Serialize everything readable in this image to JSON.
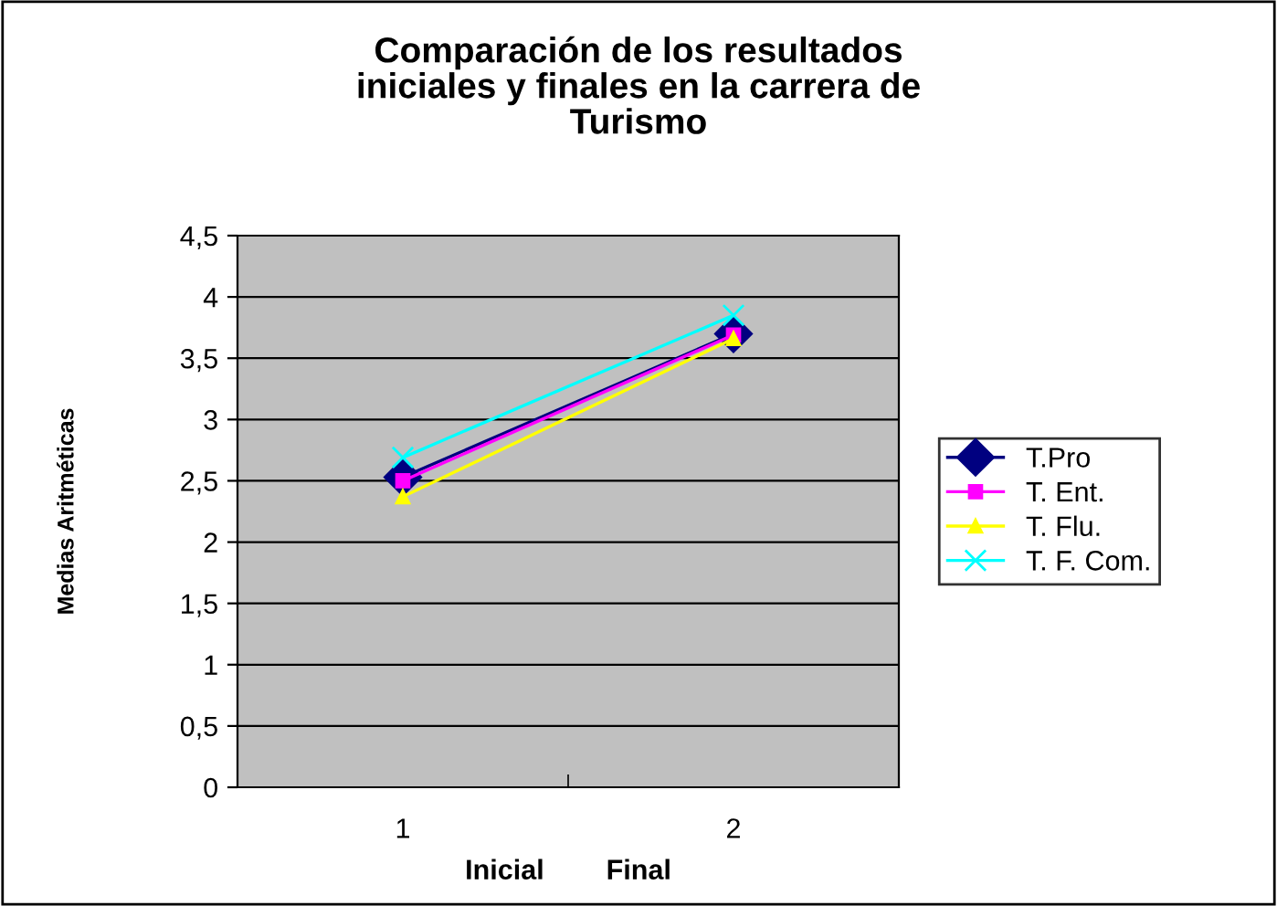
{
  "chart_data": {
    "type": "line",
    "title": "Comparación de los resultados\niniciales y finales en la carrera de\nTurismo",
    "xlabel": "Inicial        Final",
    "ylabel": "Medias Aritméticas",
    "categories": [
      "1",
      "2"
    ],
    "series": [
      {
        "name": "T.Pro",
        "color": "#000080",
        "values": [
          2.53,
          3.7
        ],
        "marker": "diamond"
      },
      {
        "name": "T. Ent.",
        "color": "#ff00ff",
        "values": [
          2.5,
          3.69
        ],
        "marker": "square"
      },
      {
        "name": "T. Flu.",
        "color": "#ffff00",
        "values": [
          2.37,
          3.66
        ],
        "marker": "triangle"
      },
      {
        "name": "T. F. Com.",
        "color": "#00ffff",
        "values": [
          2.69,
          3.85
        ],
        "marker": "cross"
      }
    ],
    "ylim": [
      0,
      4.5
    ],
    "yticks": [
      {
        "value": 0,
        "label": "0"
      },
      {
        "value": 0.5,
        "label": "0,5"
      },
      {
        "value": 1,
        "label": "1"
      },
      {
        "value": 1.5,
        "label": "1,5"
      },
      {
        "value": 2,
        "label": "2"
      },
      {
        "value": 2.5,
        "label": "2,5"
      },
      {
        "value": 3,
        "label": "3"
      },
      {
        "value": 3.5,
        "label": "3,5"
      },
      {
        "value": 4,
        "label": "4"
      },
      {
        "value": 4.5,
        "label": "4,5"
      }
    ],
    "grid": "y",
    "legend": "right"
  }
}
